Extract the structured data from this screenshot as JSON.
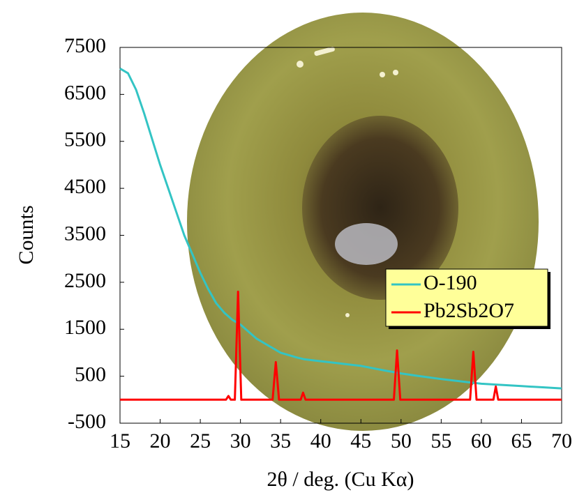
{
  "chart_data": {
    "type": "line",
    "xlabel": "2θ / deg.  (Cu Kα)",
    "ylabel": "Counts",
    "xlim": [
      15,
      70
    ],
    "xticks": [
      15,
      20,
      25,
      30,
      35,
      40,
      45,
      50,
      55,
      60,
      65,
      70
    ],
    "ylim": [
      -500,
      7500
    ],
    "yticks": [
      -500,
      500,
      1500,
      2500,
      3500,
      4500,
      5500,
      6500,
      7500
    ],
    "legend": "right",
    "series": [
      {
        "name": "O-190",
        "color": "#33c4c4",
        "x": [
          15,
          16,
          17,
          18,
          19,
          20,
          21,
          22,
          23,
          24,
          25,
          26,
          27,
          28,
          29,
          30,
          31,
          32,
          33,
          34,
          35,
          36,
          37,
          38,
          40,
          42,
          45,
          48,
          50,
          52,
          55,
          58,
          60,
          62,
          65,
          68,
          70
        ],
        "values": [
          7050,
          6950,
          6600,
          6100,
          5550,
          5000,
          4500,
          4000,
          3500,
          3100,
          2700,
          2350,
          2050,
          1850,
          1700,
          1600,
          1450,
          1300,
          1200,
          1100,
          1000,
          950,
          900,
          860,
          820,
          780,
          720,
          620,
          560,
          510,
          440,
          380,
          340,
          320,
          290,
          260,
          240
        ]
      },
      {
        "name": "Pb2Sb2O7",
        "color": "#ff0000",
        "x": [
          15,
          28.2,
          28.5,
          28.8,
          29.3,
          29.7,
          30.1,
          34.0,
          34.4,
          34.8,
          37.5,
          37.8,
          38.1,
          49.1,
          49.5,
          49.9,
          58.6,
          59.0,
          59.4,
          61.5,
          61.8,
          62.1,
          70
        ],
        "values": [
          0,
          0,
          80,
          0,
          0,
          2300,
          0,
          0,
          800,
          0,
          0,
          150,
          0,
          0,
          1050,
          0,
          0,
          1020,
          0,
          0,
          280,
          0,
          0
        ]
      }
    ]
  }
}
